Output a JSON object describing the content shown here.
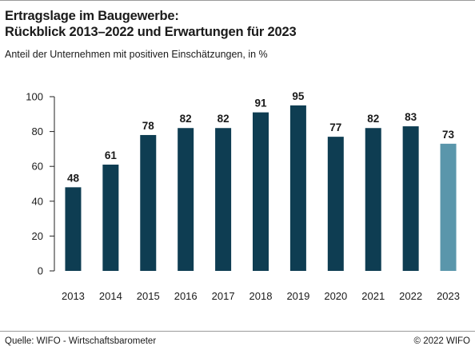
{
  "header": {
    "title_line1": "Ertragslage im Baugewerbe:",
    "title_line2": "Rückblick 2013–2022 und Erwartungen für 2023",
    "subtitle": "Anteil der Unternehmen mit positiven Einschätzungen, in %"
  },
  "footer": {
    "source": "Quelle: WIFO - Wirtschaftsbarometer",
    "copyright": "© 2022 WIFO"
  },
  "colors": {
    "bar_actual": "#0e3d52",
    "bar_expected": "#5a96ab",
    "axis": "#222222"
  },
  "chart_data": {
    "type": "bar",
    "categories": [
      "2013",
      "2014",
      "2015",
      "2016",
      "2017",
      "2018",
      "2019",
      "2020",
      "2021",
      "2022",
      "2023"
    ],
    "values": [
      48,
      61,
      78,
      82,
      82,
      91,
      95,
      77,
      82,
      83,
      73
    ],
    "data_labels": [
      "48",
      "61",
      "78",
      "82",
      "82",
      "91",
      "95",
      "77",
      "82",
      "83",
      "73"
    ],
    "expected_categories": [
      "2023"
    ],
    "ylim": [
      0,
      100
    ],
    "yticks": [
      0,
      20,
      40,
      60,
      80,
      100
    ],
    "grid": false,
    "xlabel": "",
    "ylabel": ""
  }
}
